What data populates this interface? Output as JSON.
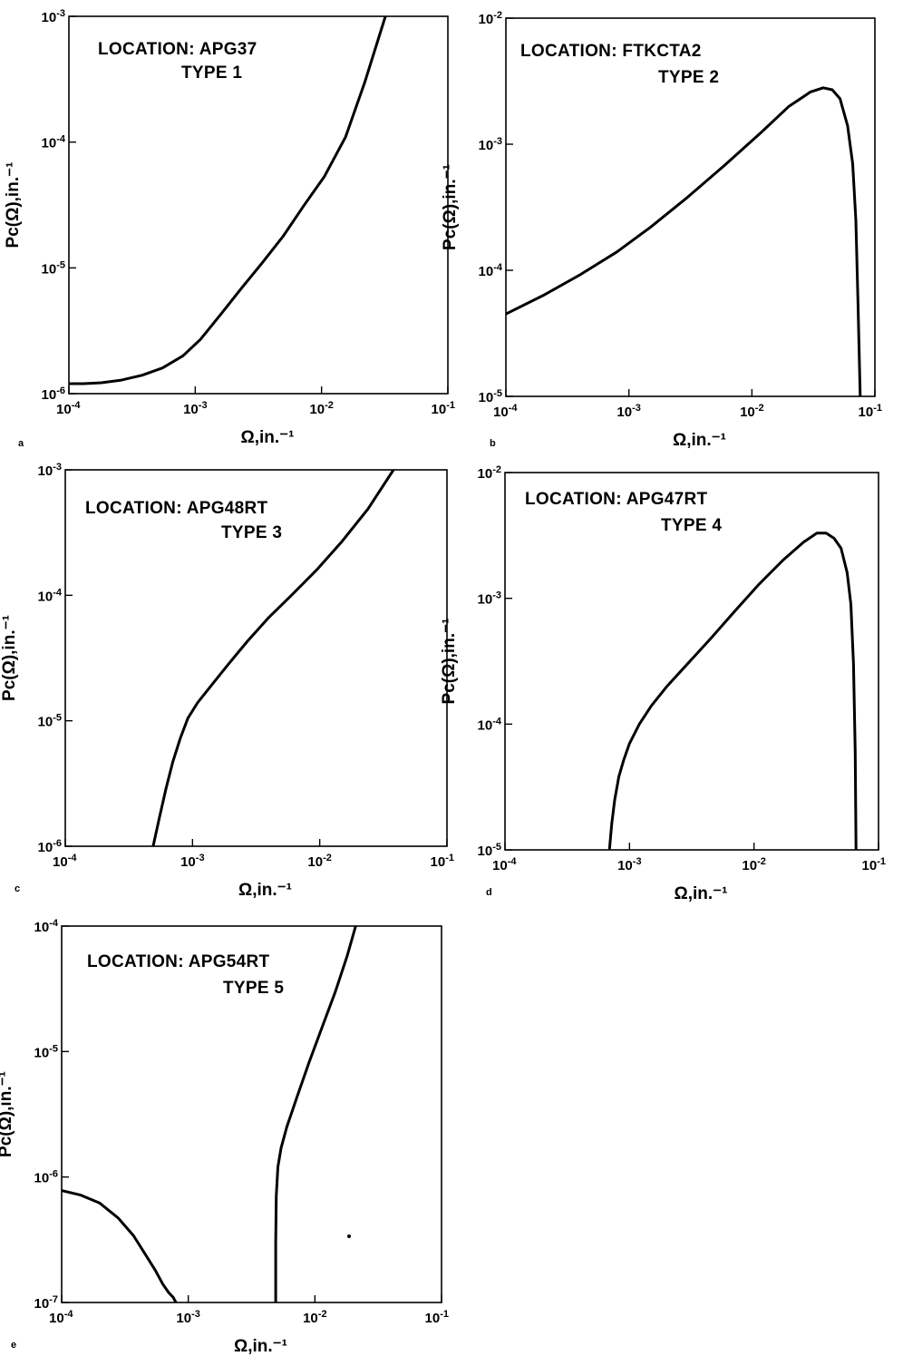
{
  "chart_data": [
    {
      "type": "line",
      "panel_letter": "a",
      "annotations": [
        "LOCATION: APG37",
        "TYPE 1"
      ],
      "xlabel": "Ω,in.⁻¹",
      "ylabel": "Pc(Ω),in.⁻¹",
      "x_scale": "log",
      "y_scale": "log",
      "xlim": [
        0.0001,
        0.1
      ],
      "ylim": [
        1e-06,
        0.001
      ],
      "x_ticks": [
        "10-4",
        "10-3",
        "10-2",
        "10-1"
      ],
      "y_ticks": [
        "10-6",
        "10-5",
        "10-4",
        "10-3"
      ],
      "series": [
        {
          "x": [
            0.0001,
            0.00013,
            0.00018,
            0.00026,
            0.00038,
            0.00055,
            0.0008,
            0.0011,
            0.0016,
            0.0023,
            0.0034,
            0.005,
            0.0072,
            0.0105,
            0.0155,
            0.022,
            0.032
          ],
          "y": [
            1.2e-06,
            1.2e-06,
            1.22e-06,
            1.28e-06,
            1.4e-06,
            1.6e-06,
            2e-06,
            2.7e-06,
            4.3e-06,
            6.8e-06,
            1.1e-05,
            1.8e-05,
            3.1e-05,
            5.3e-05,
            0.00011,
            0.0003,
            0.001
          ]
        }
      ]
    },
    {
      "type": "line",
      "panel_letter": "b",
      "annotations": [
        "LOCATION: FTKCTA2",
        "TYPE 2"
      ],
      "xlabel": "Ω,in.⁻¹",
      "ylabel": "Pc(Ω),in.⁻¹",
      "x_scale": "log",
      "y_scale": "log",
      "xlim": [
        0.0001,
        0.1
      ],
      "ylim": [
        1e-05,
        0.01
      ],
      "x_ticks": [
        "10-4",
        "10-3",
        "10-2",
        "10-1"
      ],
      "y_ticks": [
        "10-5",
        "10-4",
        "10-3",
        "10-2"
      ],
      "series": [
        {
          "x": [
            0.0001,
            0.0002,
            0.0004,
            0.0008,
            0.0015,
            0.003,
            0.006,
            0.012,
            0.02,
            0.03,
            0.038,
            0.045,
            0.052,
            0.06,
            0.066,
            0.07,
            0.073,
            0.076
          ],
          "y": [
            4.5e-05,
            6.3e-05,
            9.2e-05,
            0.00014,
            0.00022,
            0.00038,
            0.00068,
            0.00125,
            0.002,
            0.0026,
            0.0028,
            0.0027,
            0.0023,
            0.0014,
            0.0007,
            0.00025,
            5e-05,
            1e-05
          ]
        }
      ]
    },
    {
      "type": "line",
      "panel_letter": "c",
      "annotations": [
        "LOCATION: APG48RT",
        "TYPE 3"
      ],
      "xlabel": "Ω,in.⁻¹",
      "ylabel": "Pc(Ω),in.⁻¹",
      "x_scale": "log",
      "y_scale": "log",
      "xlim": [
        0.0001,
        0.1
      ],
      "ylim": [
        1e-06,
        0.001
      ],
      "x_ticks": [
        "10-4",
        "10-3",
        "10-2",
        "10-1"
      ],
      "y_ticks": [
        "10-6",
        "10-5",
        "10-4",
        "10-3"
      ],
      "series": [
        {
          "x": [
            0.00049,
            0.00055,
            0.00062,
            0.0007,
            0.0008,
            0.00092,
            0.0011,
            0.0014,
            0.0019,
            0.0027,
            0.004,
            0.006,
            0.0095,
            0.015,
            0.024,
            0.038
          ],
          "y": [
            1e-06,
            1.7e-06,
            2.9e-06,
            4.7e-06,
            7.2e-06,
            1.05e-05,
            1.4e-05,
            1.9e-05,
            2.8e-05,
            4.3e-05,
            6.7e-05,
            0.0001,
            0.00016,
            0.00027,
            0.00049,
            0.001
          ]
        }
      ]
    },
    {
      "type": "line",
      "panel_letter": "d",
      "annotations": [
        "LOCATION: APG47RT",
        "TYPE 4"
      ],
      "xlabel": "Ω,in.⁻¹",
      "ylabel": "Pc(Ω),in.⁻¹",
      "x_scale": "log",
      "y_scale": "log",
      "xlim": [
        0.0001,
        0.1
      ],
      "ylim": [
        1e-05,
        0.01
      ],
      "x_ticks": [
        "10-4",
        "10-3",
        "10-2",
        "10-1"
      ],
      "y_ticks": [
        "10-5",
        "10-4",
        "10-3",
        "10-2"
      ],
      "series": [
        {
          "x": [
            0.00069,
            0.00072,
            0.00076,
            0.00082,
            0.0009,
            0.001,
            0.0012,
            0.0015,
            0.002,
            0.003,
            0.0045,
            0.007,
            0.011,
            0.017,
            0.025,
            0.032,
            0.038,
            0.044,
            0.05,
            0.056,
            0.06,
            0.063,
            0.065,
            0.066
          ],
          "y": [
            1e-05,
            1.6e-05,
            2.5e-05,
            3.8e-05,
            5.2e-05,
            7e-05,
            0.0001,
            0.00014,
            0.0002,
            0.00031,
            0.00048,
            0.00079,
            0.0013,
            0.002,
            0.0028,
            0.0033,
            0.0033,
            0.003,
            0.0025,
            0.0016,
            0.0009,
            0.0003,
            6e-05,
            1e-05
          ]
        }
      ]
    },
    {
      "type": "line",
      "panel_letter": "e",
      "annotations": [
        "LOCATION: APG54RT",
        "TYPE 5"
      ],
      "xlabel": "Ω,in.⁻¹",
      "ylabel": "Pc(Ω),in.⁻¹",
      "x_scale": "log",
      "y_scale": "log",
      "xlim": [
        0.0001,
        0.1
      ],
      "ylim": [
        1e-07,
        0.0001
      ],
      "x_ticks": [
        "10-4",
        "10-3",
        "10-2",
        "10-1"
      ],
      "y_ticks": [
        "10-7",
        "10-6",
        "10-5",
        "10-4"
      ],
      "series": [
        {
          "x": [
            0.0001,
            0.00014,
            0.0002,
            0.00028,
            0.00037,
            0.00046,
            0.00055,
            0.00063,
            0.0007,
            0.00076,
            0.0008
          ],
          "y": [
            7.8e-07,
            7.2e-07,
            6.2e-07,
            4.7e-07,
            3.4e-07,
            2.4e-07,
            1.8e-07,
            1.4e-07,
            1.2e-07,
            1.1e-07,
            1e-07
          ]
        },
        {
          "x": [
            0.0049,
            0.0049,
            0.00495,
            0.0051,
            0.0054,
            0.006,
            0.0072,
            0.009,
            0.0115,
            0.0145,
            0.018,
            0.021
          ],
          "y": [
            1e-07,
            3e-07,
            7e-07,
            1.2e-06,
            1.7e-06,
            2.5e-06,
            4.3e-06,
            8.2e-06,
            1.6e-05,
            3e-05,
            5.8e-05,
            0.0001
          ]
        }
      ]
    }
  ]
}
